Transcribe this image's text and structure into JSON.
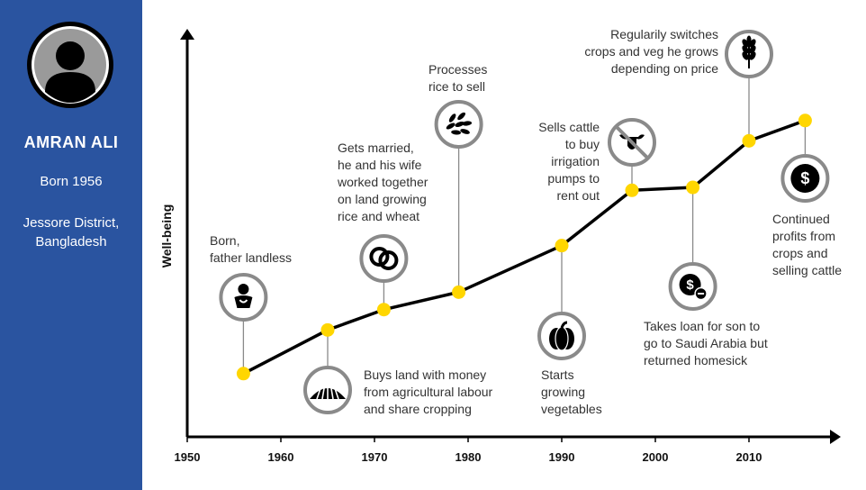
{
  "profile": {
    "name": "AMRAN ALI",
    "born": "Born 1956",
    "location": "Jessore District,\nBangladesh"
  },
  "colors": {
    "sidebar": "#2a54a0",
    "point": "#ffd600",
    "icon_ring": "#8a8a8a"
  },
  "chart_data": {
    "type": "line",
    "ylabel": "Well-being",
    "xlabel": "",
    "x_ticks": [
      1950,
      1960,
      1970,
      1980,
      1990,
      2000,
      2010
    ],
    "xlim": [
      1950,
      2020
    ],
    "ylim": [
      0,
      10
    ],
    "series": [
      {
        "x": [
          1956,
          1965,
          1971,
          1979,
          1990,
          1997.5,
          2004,
          2010,
          2016
        ],
        "y": [
          1.4,
          2.9,
          3.6,
          4.2,
          5.8,
          7.7,
          7.8,
          9.4,
          10.1
        ]
      }
    ],
    "annotations": [
      {
        "text": "Born,\nfather landless",
        "icon": "baby-icon"
      },
      {
        "text": "Buys land with money\nfrom agricultural labour\nand share cropping",
        "icon": "field-icon"
      },
      {
        "text": "Gets married,\nhe and his wife\nworked together\non land growing\nrice and wheat",
        "icon": "rings-icon"
      },
      {
        "text": "Processes\nrice to sell",
        "icon": "rice-icon"
      },
      {
        "text": "Starts\ngrowing\nvegetables",
        "icon": "pumpkin-icon"
      },
      {
        "text": "Sells cattle\nto buy\nirrigation\npumps to\nrent out",
        "icon": "no-cattle-icon"
      },
      {
        "text": "Takes loan for son to\ngo to Saudi Arabia but\nreturned homesick",
        "icon": "loan-icon"
      },
      {
        "text": "Regularily switches\ncrops and veg he grows\ndepending on price",
        "icon": "wheat-icon"
      },
      {
        "text": "Continued\nprofits from\ncrops and\nselling cattle",
        "icon": "dollar-icon"
      }
    ]
  }
}
